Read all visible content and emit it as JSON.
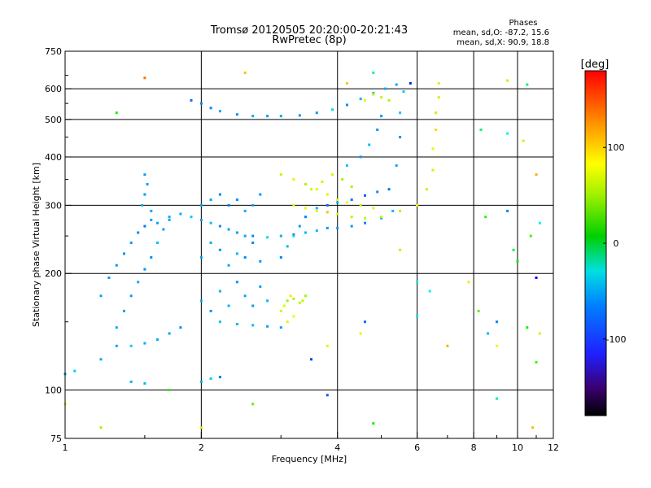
{
  "chart_data": {
    "type": "scatter",
    "title": "Tromsø 20120505 20:20:00-20:21:43",
    "subtitle": "RwPretec (8p)",
    "xlabel": "Frequency [MHz]",
    "ylabel": "Stationary phase Virtual Height [km]",
    "x_scale": "log",
    "y_scale": "log",
    "xlim": [
      1,
      12
    ],
    "ylim": [
      75,
      750
    ],
    "x_ticks": [
      1,
      2,
      4,
      6,
      8,
      10,
      12
    ],
    "x_tick_labels": [
      "1",
      "2",
      "4",
      "6",
      "8",
      "10",
      "12"
    ],
    "y_ticks": [
      75,
      100,
      200,
      300,
      400,
      500,
      600,
      750
    ],
    "y_tick_labels": [
      "75",
      "100",
      "200",
      "300",
      "400",
      "500",
      "600",
      "750"
    ],
    "grid": true,
    "grid_x": [
      2,
      4,
      6,
      8,
      10
    ],
    "grid_y": [
      100,
      200,
      300,
      400,
      500,
      600
    ],
    "legend": {
      "title": "Phases",
      "lines": [
        "mean, sd,O: -87.2, 15.6",
        "mean, sd,X: 90.9, 18.8"
      ],
      "placement": "top-right"
    },
    "colorbar": {
      "label": "[deg]",
      "range": [
        -180,
        180
      ],
      "ticks": [
        100,
        0,
        -100
      ],
      "tick_labels": [
        "100",
        "0",
        "-100"
      ],
      "colormap": "rainbow"
    },
    "series": [
      {
        "id": "o-trace",
        "phase_mean": -87.2,
        "phase_sd": 15.6,
        "points": [
          [
            1.3,
            130
          ],
          [
            1.4,
            130
          ],
          [
            1.5,
            132
          ],
          [
            1.6,
            135
          ],
          [
            1.7,
            140
          ],
          [
            1.8,
            145
          ],
          [
            1.3,
            145
          ],
          [
            1.35,
            160
          ],
          [
            1.4,
            175
          ],
          [
            1.45,
            190
          ],
          [
            1.5,
            205
          ],
          [
            1.55,
            220
          ],
          [
            1.6,
            240
          ],
          [
            1.65,
            260
          ],
          [
            1.7,
            275
          ],
          [
            1.2,
            175
          ],
          [
            1.25,
            195
          ],
          [
            1.3,
            210
          ],
          [
            1.35,
            225
          ],
          [
            1.4,
            240
          ],
          [
            1.45,
            255
          ],
          [
            1.5,
            265
          ],
          [
            1.55,
            275
          ],
          [
            1.48,
            300
          ],
          [
            1.5,
            320
          ],
          [
            1.52,
            340
          ],
          [
            1.5,
            360
          ],
          [
            1.55,
            290
          ],
          [
            1.6,
            270
          ],
          [
            1.7,
            280
          ],
          [
            1.8,
            285
          ],
          [
            1.9,
            280
          ],
          [
            2.0,
            275
          ],
          [
            2.1,
            270
          ],
          [
            2.2,
            265
          ],
          [
            2.3,
            260
          ],
          [
            2.4,
            255
          ],
          [
            2.5,
            250
          ],
          [
            2.6,
            250
          ],
          [
            2.8,
            248
          ],
          [
            3.0,
            250
          ],
          [
            3.2,
            252
          ],
          [
            3.4,
            255
          ],
          [
            3.6,
            258
          ],
          [
            3.8,
            262
          ],
          [
            4.0,
            262
          ],
          [
            4.3,
            265
          ],
          [
            4.6,
            270
          ],
          [
            5.0,
            278
          ],
          [
            5.3,
            290
          ],
          [
            2.0,
            300
          ],
          [
            2.1,
            310
          ],
          [
            2.2,
            320
          ],
          [
            2.3,
            300
          ],
          [
            2.4,
            310
          ],
          [
            2.5,
            290
          ],
          [
            2.6,
            300
          ],
          [
            2.7,
            320
          ],
          [
            2.0,
            220
          ],
          [
            2.1,
            240
          ],
          [
            2.2,
            230
          ],
          [
            2.3,
            210
          ],
          [
            2.4,
            225
          ],
          [
            2.5,
            220
          ],
          [
            2.6,
            240
          ],
          [
            2.7,
            215
          ],
          [
            2.0,
            170
          ],
          [
            2.1,
            160
          ],
          [
            2.2,
            180
          ],
          [
            2.3,
            165
          ],
          [
            2.4,
            190
          ],
          [
            2.5,
            175
          ],
          [
            2.6,
            165
          ],
          [
            2.7,
            185
          ],
          [
            2.8,
            170
          ],
          [
            2.2,
            150
          ],
          [
            2.4,
            148
          ],
          [
            2.6,
            147
          ],
          [
            2.8,
            146
          ],
          [
            3.0,
            145
          ],
          [
            2.0,
            105
          ],
          [
            2.1,
            107
          ],
          [
            2.2,
            108
          ],
          [
            1.4,
            105
          ],
          [
            1.5,
            104
          ],
          [
            1.0,
            110
          ],
          [
            1.05,
            112
          ],
          [
            1.9,
            560
          ],
          [
            2.0,
            550
          ],
          [
            2.1,
            535
          ],
          [
            2.2,
            525
          ],
          [
            2.4,
            515
          ],
          [
            2.6,
            510
          ],
          [
            2.8,
            510
          ],
          [
            3.0,
            510
          ],
          [
            3.3,
            512
          ],
          [
            3.6,
            520
          ],
          [
            3.9,
            530
          ],
          [
            4.2,
            545
          ],
          [
            4.5,
            565
          ],
          [
            4.8,
            585
          ],
          [
            5.1,
            600
          ],
          [
            5.4,
            615
          ],
          [
            5.2,
            330
          ],
          [
            5.4,
            380
          ],
          [
            5.5,
            450
          ],
          [
            5.5,
            520
          ],
          [
            5.6,
            590
          ],
          [
            4.2,
            380
          ],
          [
            4.5,
            400
          ],
          [
            4.7,
            430
          ],
          [
            4.9,
            470
          ],
          [
            5.0,
            510
          ],
          [
            3.0,
            220
          ],
          [
            3.1,
            235
          ],
          [
            3.2,
            250
          ],
          [
            3.3,
            265
          ],
          [
            3.4,
            280
          ],
          [
            3.6,
            295
          ],
          [
            3.8,
            300
          ],
          [
            4.0,
            305
          ],
          [
            4.3,
            310
          ],
          [
            4.6,
            318
          ],
          [
            4.9,
            325
          ]
        ]
      },
      {
        "id": "x-trace",
        "phase_mean": 90.9,
        "phase_sd": 18.8,
        "points": [
          [
            3.0,
            160
          ],
          [
            3.05,
            165
          ],
          [
            3.1,
            170
          ],
          [
            3.15,
            175
          ],
          [
            3.2,
            172
          ],
          [
            3.3,
            168
          ],
          [
            3.35,
            170
          ],
          [
            3.4,
            175
          ],
          [
            3.1,
            150
          ],
          [
            3.2,
            155
          ],
          [
            3.0,
            360
          ],
          [
            3.2,
            350
          ],
          [
            3.4,
            340
          ],
          [
            3.6,
            330
          ],
          [
            3.8,
            320
          ],
          [
            4.0,
            310
          ],
          [
            4.2,
            305
          ],
          [
            4.5,
            300
          ],
          [
            4.8,
            295
          ],
          [
            3.2,
            300
          ],
          [
            3.4,
            295
          ],
          [
            3.6,
            290
          ],
          [
            3.8,
            288
          ],
          [
            4.0,
            285
          ],
          [
            4.3,
            280
          ],
          [
            4.6,
            278
          ],
          [
            5.0,
            280
          ],
          [
            5.5,
            290
          ],
          [
            6.0,
            300
          ],
          [
            6.3,
            330
          ],
          [
            6.5,
            370
          ],
          [
            6.5,
            420
          ],
          [
            6.6,
            470
          ],
          [
            6.6,
            520
          ],
          [
            6.7,
            570
          ],
          [
            6.7,
            620
          ],
          [
            4.6,
            560
          ],
          [
            4.8,
            580
          ],
          [
            5.0,
            570
          ],
          [
            5.2,
            560
          ],
          [
            3.5,
            330
          ],
          [
            3.7,
            345
          ],
          [
            3.9,
            360
          ],
          [
            4.1,
            350
          ],
          [
            4.3,
            335
          ]
        ]
      },
      {
        "id": "noise",
        "points": [
          [
            1.5,
            640
          ],
          [
            1.3,
            520
          ],
          [
            2.5,
            660
          ],
          [
            4.8,
            660
          ],
          [
            4.2,
            620
          ],
          [
            5.8,
            620
          ],
          [
            9.5,
            630
          ],
          [
            10.5,
            615
          ],
          [
            8.3,
            470
          ],
          [
            9.5,
            460
          ],
          [
            10.3,
            440
          ],
          [
            11.0,
            360
          ],
          [
            11.2,
            270
          ],
          [
            8.5,
            280
          ],
          [
            9.5,
            290
          ],
          [
            10.7,
            250
          ],
          [
            9.8,
            230
          ],
          [
            10.0,
            215
          ],
          [
            11.0,
            195
          ],
          [
            6.0,
            190
          ],
          [
            6.4,
            180
          ],
          [
            7.8,
            190
          ],
          [
            8.6,
            140
          ],
          [
            9.0,
            150
          ],
          [
            10.5,
            145
          ],
          [
            11.2,
            140
          ],
          [
            9.0,
            130
          ],
          [
            11.0,
            118
          ],
          [
            4.5,
            140
          ],
          [
            4.6,
            150
          ],
          [
            3.8,
            130
          ],
          [
            3.5,
            120
          ],
          [
            2.6,
            92
          ],
          [
            2.0,
            80
          ],
          [
            3.8,
            97
          ],
          [
            4.8,
            82
          ],
          [
            9.0,
            95
          ],
          [
            10.8,
            80
          ],
          [
            1.7,
            100
          ],
          [
            1.2,
            120
          ],
          [
            5.5,
            230
          ],
          [
            6.0,
            155
          ],
          [
            7.0,
            130
          ],
          [
            8.2,
            160
          ],
          [
            1.0,
            92
          ],
          [
            1.2,
            80
          ]
        ]
      }
    ]
  }
}
